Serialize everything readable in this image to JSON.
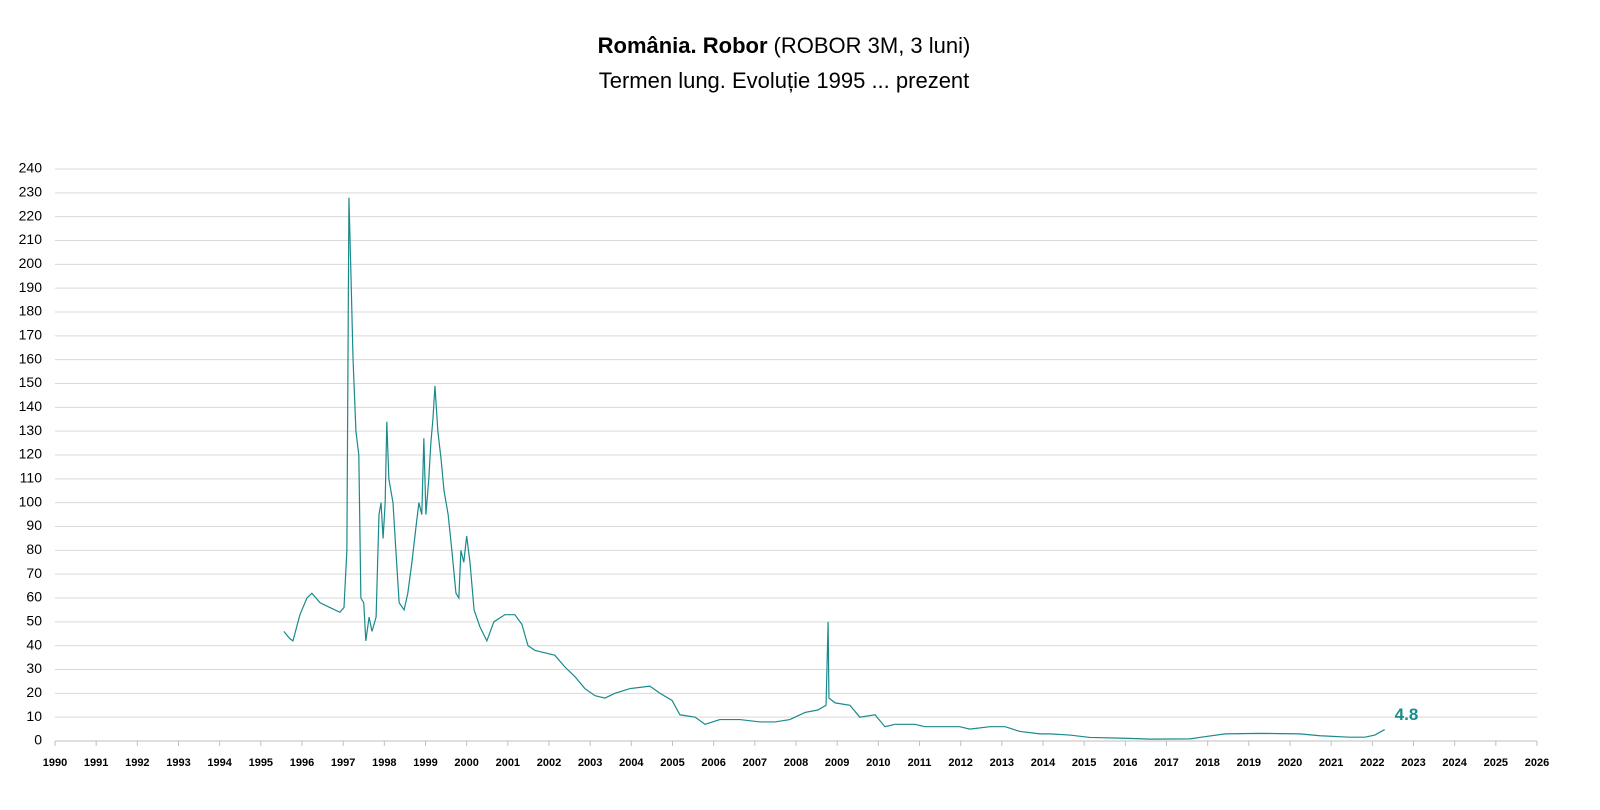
{
  "chart_data": {
    "type": "line",
    "title": "România. Robor",
    "title_detail": "(ROBOR 3M, 3 luni)",
    "subtitle": "Termen lung. Evoluție 1995 ... prezent",
    "x": [
      1995.56,
      1995.7,
      1995.78,
      1995.95,
      1996.12,
      1996.24,
      1996.44,
      1996.68,
      1996.92,
      1997.02,
      1997.09,
      1997.14,
      1997.19,
      1997.24,
      1997.31,
      1997.38,
      1997.43,
      1997.5,
      1997.55,
      1997.63,
      1997.7,
      1997.8,
      1997.87,
      1997.92,
      1997.97,
      1998.02,
      1998.06,
      1998.11,
      1998.21,
      1998.28,
      1998.36,
      1998.48,
      1998.57,
      1998.67,
      1998.77,
      1998.84,
      1998.91,
      1998.96,
      1999.01,
      1999.08,
      1999.13,
      1999.18,
      1999.23,
      1999.3,
      1999.38,
      1999.45,
      1999.55,
      1999.64,
      1999.74,
      1999.81,
      1999.86,
      1999.93,
      2000.0,
      2000.08,
      2000.18,
      2000.32,
      2000.49,
      2000.66,
      2000.93,
      2001.17,
      2001.34,
      2001.49,
      2001.66,
      2001.9,
      2002.14,
      2002.39,
      2002.63,
      2002.87,
      2003.12,
      2003.36,
      2003.6,
      2003.97,
      2004.45,
      2004.7,
      2004.99,
      2005.18,
      2005.55,
      2005.79,
      2006.15,
      2006.64,
      2007.12,
      2007.49,
      2007.85,
      2008.22,
      2008.53,
      2008.73,
      2008.78,
      2008.8,
      2008.95,
      2009.31,
      2009.55,
      2009.92,
      2010.16,
      2010.4,
      2010.89,
      2011.13,
      2011.74,
      2011.98,
      2012.22,
      2012.71,
      2013.08,
      2013.44,
      2013.93,
      2014.17,
      2014.65,
      2015.14,
      2015.87,
      2016.6,
      2017.57,
      2017.93,
      2018.42,
      2019.27,
      2020.24,
      2020.73,
      2021.45,
      2021.82,
      2022.06,
      2022.3
    ],
    "series": [
      {
        "name": "ROBOR 3M",
        "color": "#1a8a8a",
        "values": [
          46,
          43,
          42,
          53,
          60,
          62,
          58,
          56,
          54,
          56,
          80,
          228,
          195,
          160,
          130,
          120,
          60,
          58,
          42,
          52,
          46,
          52,
          95,
          100,
          85,
          100,
          134,
          110,
          100,
          80,
          58,
          55,
          62,
          75,
          90,
          100,
          95,
          127,
          95,
          110,
          125,
          135,
          149,
          130,
          118,
          105,
          95,
          80,
          62,
          60,
          80,
          75,
          86,
          75,
          55,
          48,
          42,
          50,
          53,
          53,
          49,
          40,
          38,
          37,
          36,
          31,
          27,
          22,
          19,
          18,
          20,
          22,
          23,
          20,
          17,
          11,
          10,
          7,
          9,
          9,
          8,
          8,
          9,
          12,
          13,
          15,
          50,
          18,
          16,
          15,
          10,
          11,
          6,
          7,
          7,
          6,
          6,
          6,
          5,
          6,
          6,
          4,
          3,
          3,
          2.5,
          1.5,
          1.2,
          0.8,
          0.9,
          1.8,
          3,
          3.2,
          3,
          2.2,
          1.6,
          1.6,
          2.5,
          4.8
        ]
      }
    ],
    "xlim": [
      1990,
      2026
    ],
    "xticks": [
      1990,
      1991,
      1992,
      1993,
      1994,
      1995,
      1996,
      1997,
      1998,
      1999,
      2000,
      2001,
      2002,
      2003,
      2004,
      2005,
      2006,
      2007,
      2008,
      2009,
      2010,
      2011,
      2012,
      2013,
      2014,
      2015,
      2016,
      2017,
      2018,
      2019,
      2020,
      2021,
      2022,
      2023,
      2024,
      2025,
      2026
    ],
    "ylim": [
      0,
      240
    ],
    "yticks": [
      0,
      10,
      20,
      30,
      40,
      50,
      60,
      70,
      80,
      90,
      100,
      110,
      120,
      130,
      140,
      150,
      160,
      170,
      180,
      190,
      200,
      210,
      220,
      230,
      240
    ],
    "grid": true
  }
}
